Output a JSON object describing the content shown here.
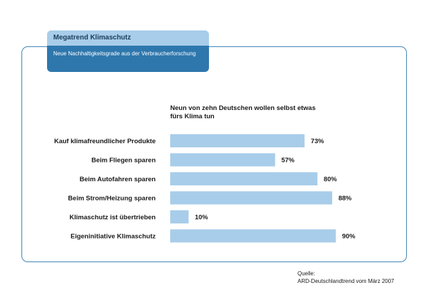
{
  "header": {
    "tab_title": "Megatrend Klimaschutz",
    "tab_subtitle": "Neue Nachhaltigkeitsgrade aus der Verbraucherforschung"
  },
  "chart_data": {
    "type": "bar",
    "orientation": "horizontal",
    "title": "Neun von zehn Deutschen wollen selbst etwas fürs Klima tun",
    "categories": [
      "Kauf klimafreundlicher Produkte",
      "Beim Fliegen sparen",
      "Beim Autofahren sparen",
      "Beim Strom/Heizung sparen",
      "Klimaschutz ist übertrieben",
      "Eigeninitiative Klimaschutz"
    ],
    "values": [
      73,
      57,
      80,
      88,
      10,
      90
    ],
    "value_labels": [
      "73%",
      "57%",
      "80%",
      "88%",
      "10%",
      "90%"
    ],
    "unit": "%",
    "xlim": [
      0,
      100
    ],
    "grid": false,
    "bar_color": "#a8cdea"
  },
  "source": {
    "label": "Quelle:",
    "text": "ARD-Deutschlandtrend vom März 2007"
  }
}
